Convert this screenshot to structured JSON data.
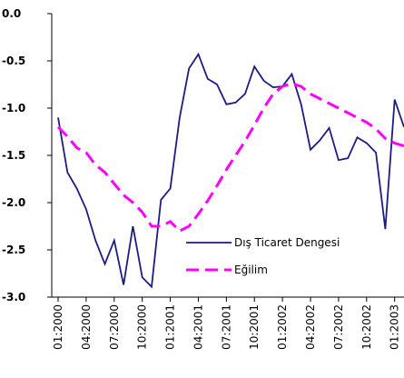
{
  "chart_data": {
    "type": "line",
    "categories": [
      "01:2000",
      null,
      null,
      "04:2000",
      null,
      null,
      "07:2000",
      null,
      null,
      "10:2000",
      null,
      null,
      "01:2001",
      null,
      null,
      "04:2001",
      null,
      null,
      "07:2001",
      null,
      null,
      "10:2001",
      null,
      null,
      "01:2002",
      null,
      null,
      "04:2002",
      null,
      null,
      "07:2002",
      null,
      null,
      "10:2002",
      null,
      null,
      "01:2003",
      null
    ],
    "series": [
      {
        "name": "Dış Ticaret Dengesi",
        "color": "#1c1c84",
        "dashed": false,
        "values": [
          -1.1,
          -1.68,
          -1.85,
          -2.07,
          -2.4,
          -2.65,
          -2.4,
          -2.87,
          -2.25,
          -2.79,
          -2.89,
          -1.97,
          -1.85,
          -1.1,
          -0.58,
          -0.43,
          -0.69,
          -0.75,
          -0.96,
          -0.94,
          -0.85,
          -0.56,
          -0.71,
          -0.78,
          -0.77,
          -0.64,
          -0.96,
          -1.44,
          -1.34,
          -1.21,
          -1.55,
          -1.53,
          -1.31,
          -1.37,
          -1.47,
          -2.28,
          -0.91,
          -1.2
        ]
      },
      {
        "name": "Eğilim",
        "color": "#ff00ff",
        "dashed": true,
        "values": [
          -1.2,
          -1.3,
          -1.42,
          -1.47,
          -1.6,
          -1.68,
          -1.8,
          -1.92,
          -2.0,
          -2.1,
          -2.25,
          -2.25,
          -2.2,
          -2.3,
          -2.25,
          -2.12,
          -1.98,
          -1.82,
          -1.65,
          -1.5,
          -1.35,
          -1.18,
          -1.0,
          -0.85,
          -0.77,
          -0.74,
          -0.77,
          -0.85,
          -0.9,
          -0.95,
          -1.0,
          -1.05,
          -1.1,
          -1.15,
          -1.22,
          -1.32,
          -1.37,
          -1.4
        ]
      }
    ],
    "ylim": [
      -3,
      0
    ],
    "yticks": [
      {
        "value": 0,
        "label": "0.0"
      },
      -0.5,
      {
        "value": -1,
        "label": "-1.0"
      },
      -1.5,
      {
        "value": -2,
        "label": "-2.0"
      },
      -2.5,
      {
        "value": -3,
        "label": "-3.0"
      }
    ],
    "grid": false,
    "legend": "inside-lower-center"
  }
}
